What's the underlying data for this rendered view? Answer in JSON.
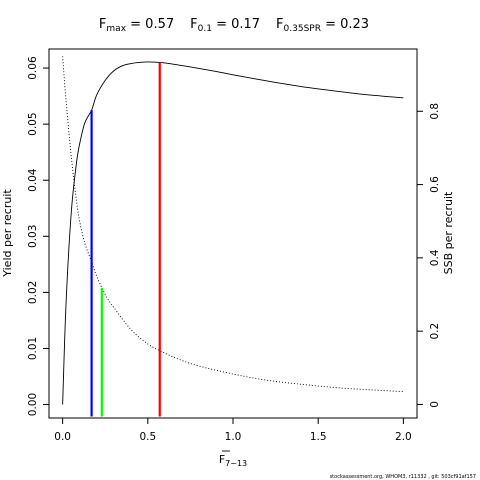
{
  "chart_data": {
    "type": "line",
    "title": {
      "parts": [
        {
          "main": "F",
          "sub": "max",
          "value": " = 0.57"
        },
        {
          "main": "F",
          "sub": "0.1",
          "value": " = 0.17"
        },
        {
          "main": "F",
          "sub": "0.35SPR",
          "value": " = 0.23"
        }
      ]
    },
    "xlabel": {
      "main": "F",
      "sub": "7−13",
      "overbar": true
    },
    "ylabel": "Yield per recruit",
    "y2label": "SSB per recruit",
    "xlim": [
      -0.08,
      2.08
    ],
    "ylim": [
      -0.0024,
      0.0634
    ],
    "y2lim": [
      -0.037,
      0.97
    ],
    "xticks": [
      0.0,
      0.5,
      1.0,
      1.5,
      2.0
    ],
    "xtick_labels": [
      "0.0",
      "0.5",
      "1.0",
      "1.5",
      "2.0"
    ],
    "yticks": [
      0.0,
      0.01,
      0.02,
      0.03,
      0.04,
      0.05,
      0.06
    ],
    "ytick_labels": [
      "0.00",
      "0.01",
      "0.02",
      "0.03",
      "0.04",
      "0.05",
      "0.06"
    ],
    "y2ticks": [
      0,
      0.2,
      0.4,
      0.6,
      0.8
    ],
    "y2tick_labels": [
      "0",
      "0.2",
      "0.4",
      "0.6",
      "0.8"
    ],
    "grid": false,
    "series": [
      {
        "axis": "left",
        "style": "solid",
        "color": "#000000",
        "x": [
          0.0,
          0.02,
          0.05,
          0.08,
          0.1,
          0.13,
          0.17,
          0.2,
          0.25,
          0.3,
          0.35,
          0.4,
          0.45,
          0.5,
          0.57,
          0.65,
          0.75,
          0.9,
          1.0,
          1.2,
          1.4,
          1.6,
          1.8,
          2.0
        ],
        "y": [
          0.0,
          0.018,
          0.034,
          0.0428,
          0.0465,
          0.0502,
          0.0525,
          0.0552,
          0.0578,
          0.0595,
          0.0604,
          0.0608,
          0.061,
          0.0611,
          0.061,
          0.0607,
          0.0602,
          0.0594,
          0.0588,
          0.0577,
          0.0567,
          0.0559,
          0.0552,
          0.0547
        ]
      },
      {
        "axis": "right",
        "style": "dotted",
        "color": "#000000",
        "x": [
          0.0,
          0.02,
          0.05,
          0.08,
          0.1,
          0.13,
          0.17,
          0.2,
          0.25,
          0.3,
          0.4,
          0.5,
          0.6,
          0.7,
          0.8,
          1.0,
          1.2,
          1.4,
          1.6,
          1.8,
          2.0
        ],
        "y": [
          0.95,
          0.83,
          0.68,
          0.56,
          0.5,
          0.44,
          0.39,
          0.35,
          0.3,
          0.265,
          0.205,
          0.165,
          0.14,
          0.12,
          0.105,
          0.083,
          0.066,
          0.055,
          0.046,
          0.04,
          0.035
        ]
      }
    ],
    "reference_lines": [
      {
        "label": "F0.1",
        "x": 0.17,
        "y": 0.0525,
        "color": "#0000FF"
      },
      {
        "label": "F0.35SPR",
        "x": 0.23,
        "y": 0.0208,
        "color": "#00FF00"
      },
      {
        "label": "Fmax",
        "x": 0.57,
        "y": 0.061,
        "color": "#FF0000"
      }
    ]
  },
  "footer": "stockassessment.org, WHOM3, r11332 , git: 503cf91af157"
}
